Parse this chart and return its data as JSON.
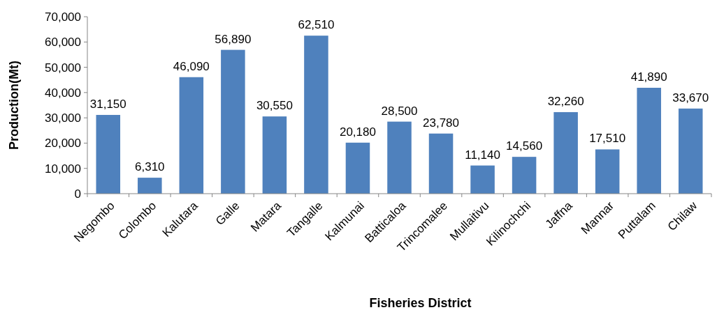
{
  "chart_data": {
    "type": "bar",
    "xlabel": "Fisheries District",
    "ylabel": "Production(Mt)",
    "categories": [
      "Negombo",
      "Colombo",
      "Kalutara",
      "Galle",
      "Matara",
      "Tangalle",
      "Kalmunai",
      "Batticaloa",
      "Trincomalee",
      "Mullaitivu",
      "Kilinochchi",
      "Jaffna",
      "Mannar",
      "Puttalam",
      "Chilaw"
    ],
    "values": [
      31150,
      6310,
      46090,
      56890,
      30550,
      62510,
      20180,
      28500,
      23780,
      11140,
      14560,
      32260,
      17510,
      41890,
      33670
    ],
    "color": "#4f81bd",
    "ylim": [
      0,
      70000
    ],
    "yticks": [
      {
        "value": 0,
        "label": "0"
      },
      {
        "value": 10000,
        "label": "10,000"
      },
      {
        "value": 20000,
        "label": "20,000"
      },
      {
        "value": 30000,
        "label": "30,000"
      },
      {
        "value": 40000,
        "label": "40,000"
      },
      {
        "value": 50000,
        "label": "50,000"
      },
      {
        "value": 60000,
        "label": "60,000"
      },
      {
        "value": 70000,
        "label": "70,000"
      }
    ],
    "value_labels": [
      "31,150",
      "6,310",
      "46,090",
      "56,890",
      "30,550",
      "62,510",
      "20,180",
      "28,500",
      "23,780",
      "11,140",
      "14,560",
      "32,260",
      "17,510",
      "41,890",
      "33,670"
    ],
    "grid": false
  }
}
